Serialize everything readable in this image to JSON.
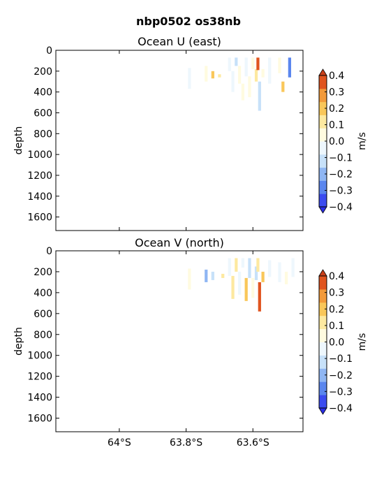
{
  "figure": {
    "title": "nbp0502 os38nb"
  },
  "chart_data": [
    {
      "type": "heatmap",
      "title": "Ocean U (east)",
      "ylabel": "depth",
      "xlabel": "",
      "ylim": [
        1730,
        0
      ],
      "xlim": [
        -64.19,
        -63.45
      ],
      "x_ticks": [],
      "y_ticks": [
        0,
        200,
        400,
        600,
        800,
        1000,
        1200,
        1400,
        1600
      ],
      "colorbar": {
        "label": "m/s",
        "ticks": [
          "0.4",
          "0.3",
          "0.2",
          "0.1",
          "0.0",
          "−0.1",
          "−0.2",
          "−0.3",
          "−0.4"
        ],
        "extend": "both"
      },
      "depth_range": [
        70,
        580
      ],
      "cells": [
        [
          -63.79,
          170,
          370,
          -0.08
        ],
        [
          -63.74,
          150,
          300,
          0.06
        ],
        [
          -63.72,
          200,
          270,
          0.16
        ],
        [
          -63.7,
          230,
          260,
          0.08
        ],
        [
          -63.67,
          70,
          200,
          -0.05
        ],
        [
          -63.66,
          200,
          400,
          -0.03
        ],
        [
          -63.65,
          70,
          150,
          -0.1
        ],
        [
          -63.64,
          150,
          320,
          0.03
        ],
        [
          -63.63,
          320,
          480,
          0.07
        ],
        [
          -63.62,
          70,
          250,
          -0.06
        ],
        [
          -63.61,
          250,
          450,
          0.04
        ],
        [
          -63.6,
          70,
          180,
          0.02
        ],
        [
          -63.59,
          180,
          300,
          0.09
        ],
        [
          -63.585,
          70,
          190,
          0.38
        ],
        [
          -63.58,
          300,
          580,
          -0.12
        ],
        [
          -63.57,
          180,
          260,
          0.06
        ],
        [
          -63.55,
          70,
          320,
          -0.04
        ],
        [
          -63.52,
          70,
          220,
          0.05
        ],
        [
          -63.51,
          300,
          400,
          0.22
        ],
        [
          -63.49,
          70,
          260,
          -0.25
        ]
      ]
    },
    {
      "type": "heatmap",
      "title": "Ocean V (north)",
      "ylabel": "depth",
      "xlabel": "",
      "ylim": [
        1730,
        0
      ],
      "xlim": [
        -64.19,
        -63.45
      ],
      "x_ticks": [
        "64°S",
        "63.8°S",
        "63.6°S"
      ],
      "x_tick_values": [
        -64.0,
        -63.8,
        -63.6
      ],
      "y_ticks": [
        0,
        200,
        400,
        600,
        800,
        1000,
        1200,
        1400,
        1600
      ],
      "colorbar": {
        "label": "m/s",
        "ticks": [
          "0.4",
          "0.3",
          "0.2",
          "0.1",
          "0.0",
          "−0.1",
          "−0.2",
          "−0.3",
          "−0.4"
        ],
        "extend": "both"
      },
      "depth_range": [
        70,
        580
      ],
      "cells": [
        [
          -63.79,
          170,
          370,
          0.05
        ],
        [
          -63.74,
          180,
          300,
          -0.22
        ],
        [
          -63.72,
          200,
          280,
          -0.12
        ],
        [
          -63.69,
          220,
          260,
          0.08
        ],
        [
          -63.67,
          70,
          240,
          -0.06
        ],
        [
          -63.66,
          240,
          460,
          0.12
        ],
        [
          -63.65,
          70,
          200,
          0.15
        ],
        [
          -63.64,
          200,
          420,
          -0.07
        ],
        [
          -63.63,
          70,
          160,
          -0.02
        ],
        [
          -63.62,
          260,
          480,
          0.18
        ],
        [
          -63.61,
          70,
          260,
          -0.09
        ],
        [
          -63.6,
          260,
          450,
          0.06
        ],
        [
          -63.59,
          150,
          280,
          -0.14
        ],
        [
          -63.585,
          70,
          200,
          0.11
        ],
        [
          -63.58,
          300,
          580,
          0.36
        ],
        [
          -63.57,
          200,
          300,
          0.16
        ],
        [
          -63.55,
          90,
          250,
          -0.05
        ],
        [
          -63.52,
          110,
          300,
          -0.08
        ],
        [
          -63.5,
          200,
          320,
          0.07
        ],
        [
          -63.48,
          70,
          250,
          -0.04
        ]
      ]
    }
  ]
}
